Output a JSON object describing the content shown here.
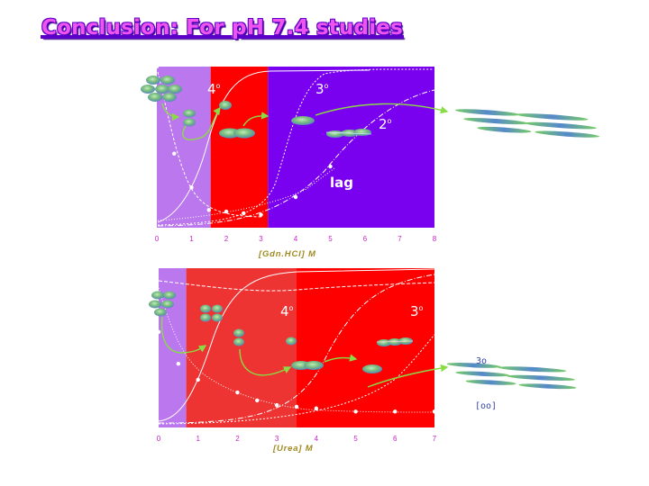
{
  "title": "Conclusion: For pH 7.4 studies",
  "colors": {
    "lavender": "#bb77ee",
    "red": "#ff0000",
    "red_light": "#ee3333",
    "purple": "#7a00f0",
    "arrow_green": "#88dd44",
    "oligomer_fill": "#5599bb",
    "title_fill": "#ee55ee",
    "title_outline": "#5a00c8"
  },
  "top_chart": {
    "xlabel": "[Gdn.HCl] M",
    "xticks": [
      "0",
      "1",
      "2",
      "3",
      "4",
      "5",
      "6",
      "7",
      "8"
    ],
    "xlim": [
      0,
      8
    ],
    "regions": [
      {
        "from": 0,
        "to": 1.55,
        "color": "lavender"
      },
      {
        "from": 1.55,
        "to": 3.2,
        "color": "red"
      },
      {
        "from": 3.2,
        "to": 8,
        "color": "purple"
      }
    ],
    "labels": {
      "s4": "4",
      "s3": "3",
      "s2": "2",
      "lag": "lag",
      "deg": "o"
    },
    "points": [
      [
        0,
        1.0
      ],
      [
        0.5,
        0.46
      ],
      [
        1.0,
        0.25
      ],
      [
        1.5,
        0.11
      ],
      [
        2.0,
        0.1
      ],
      [
        2.5,
        0.09
      ],
      [
        3.0,
        0.08
      ],
      [
        4.0,
        0.19
      ],
      [
        5.0,
        0.38
      ]
    ]
  },
  "bottom_chart": {
    "xlabel": "[Urea] M",
    "xticks": [
      "0",
      "1",
      "2",
      "3",
      "4",
      "5",
      "6",
      "7"
    ],
    "xlim": [
      0,
      7
    ],
    "regions": [
      {
        "from": 0,
        "to": 0.7,
        "color": "lavender"
      },
      {
        "from": 0.7,
        "to": 3.5,
        "color": "red_light"
      },
      {
        "from": 3.5,
        "to": 7,
        "color": "red"
      }
    ],
    "labels": {
      "s4": "4",
      "s3": "3",
      "deg": "o"
    },
    "points": [
      [
        0,
        0.6
      ],
      [
        0.5,
        0.4
      ],
      [
        1.0,
        0.3
      ],
      [
        2.0,
        0.22
      ],
      [
        2.5,
        0.17
      ],
      [
        3.0,
        0.14
      ],
      [
        3.5,
        0.13
      ],
      [
        4.0,
        0.12
      ],
      [
        5.0,
        0.1
      ],
      [
        6.0,
        0.1
      ],
      [
        7.0,
        0.1
      ]
    ]
  },
  "fibril_key": {
    "top": "3o",
    "bottom": "[oo]"
  }
}
